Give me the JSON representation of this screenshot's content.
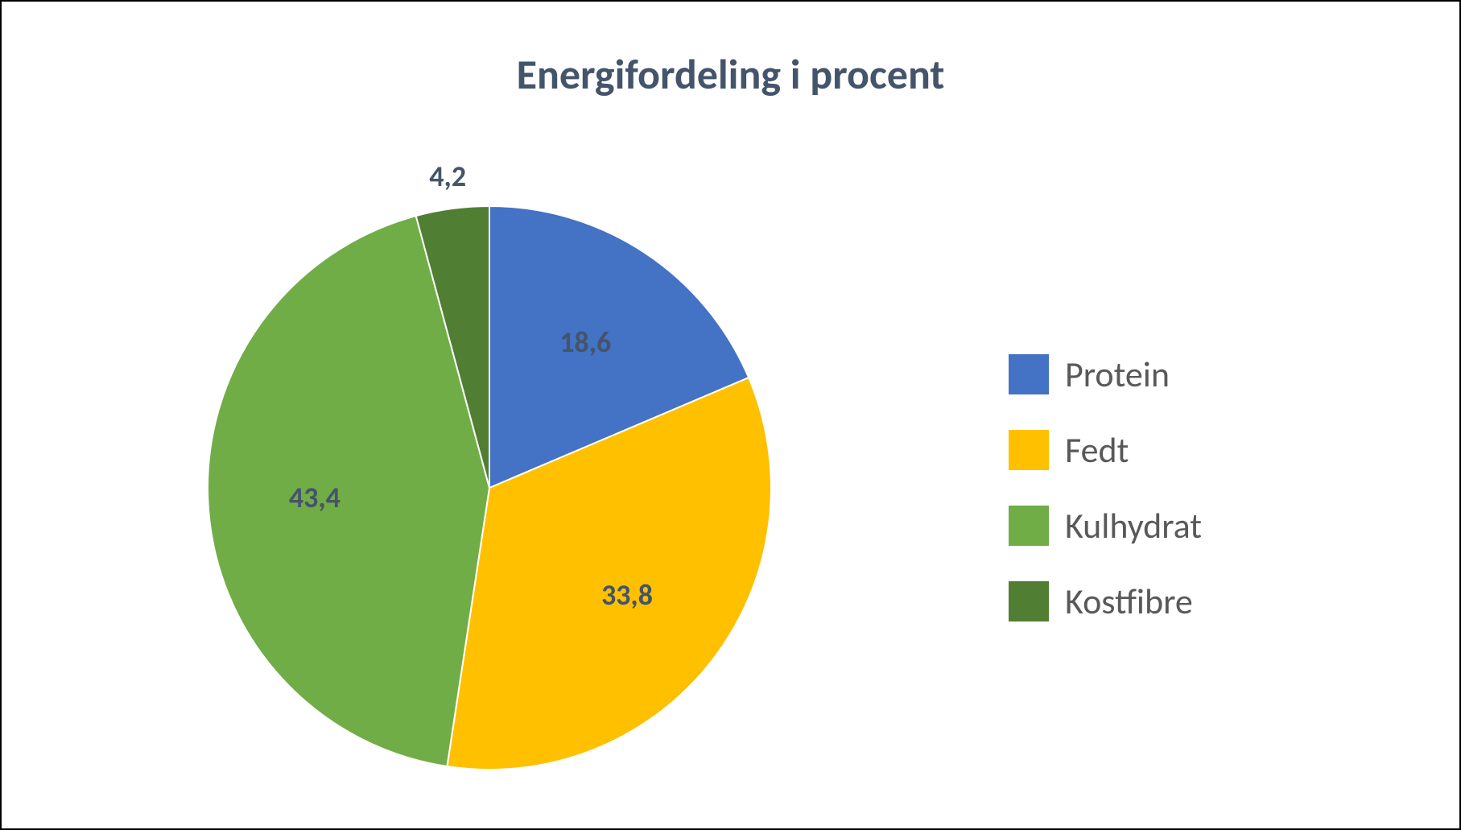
{
  "chart": {
    "type": "pie",
    "title": "Energifordeling i procent",
    "title_fontsize": 52,
    "title_color": "#44546a",
    "background_color": "#ffffff",
    "border_color": "#000000",
    "pie_radius": 350,
    "label_fontsize": 36,
    "label_color": "#44546a",
    "label_fontweight": 700,
    "legend_fontsize": 44,
    "legend_color": "#595959",
    "legend_swatch_size": 50,
    "slice_separator_color": "#ffffff",
    "slice_separator_width": 2,
    "slices": [
      {
        "name": "Protein",
        "value": 18.6,
        "label": "18,6",
        "color": "#4472c4"
      },
      {
        "name": "Fedt",
        "value": 33.8,
        "label": "33,8",
        "color": "#ffc000"
      },
      {
        "name": "Kulhydrat",
        "value": 43.4,
        "label": "43,4",
        "color": "#70ad47"
      },
      {
        "name": "Kostfibre",
        "value": 4.2,
        "label": "4,2",
        "color": "#507e32",
        "label_outside": true
      }
    ]
  }
}
